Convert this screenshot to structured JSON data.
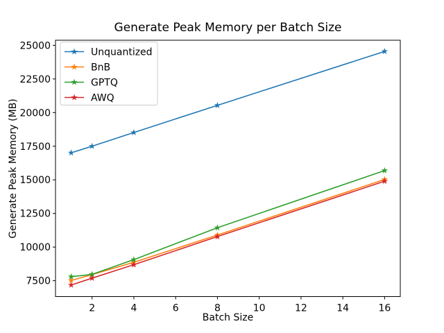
{
  "figure": {
    "background": "#ffffff",
    "spine_color": "#000000"
  },
  "chart_data": {
    "type": "line",
    "title": "Generate Peak Memory per Batch Size",
    "xlabel": "Batch Size",
    "ylabel": "Generate Peak Memory (MB)",
    "x": [
      1,
      2,
      4,
      8,
      16
    ],
    "xticks": [
      2,
      4,
      6,
      8,
      10,
      12,
      14,
      16
    ],
    "yticks": [
      7500,
      10000,
      12500,
      15000,
      17500,
      20000,
      22500,
      25000
    ],
    "xlim": [
      0.25,
      16.75
    ],
    "ylim": [
      6320,
      25380
    ],
    "grid": false,
    "legend_position": "upper left",
    "marker": "star",
    "series": [
      {
        "name": "Unquantized",
        "color": "#1f77b4",
        "values": [
          17010,
          17500,
          18520,
          20540,
          24550
        ]
      },
      {
        "name": "BnB",
        "color": "#ff7f0e",
        "values": [
          7520,
          7950,
          8870,
          10900,
          15030
        ]
      },
      {
        "name": "GPTQ",
        "color": "#2ca02c",
        "values": [
          7800,
          7970,
          9070,
          11440,
          15690
        ]
      },
      {
        "name": "AWQ",
        "color": "#d62728",
        "values": [
          7180,
          7690,
          8690,
          10780,
          14900
        ]
      }
    ]
  }
}
